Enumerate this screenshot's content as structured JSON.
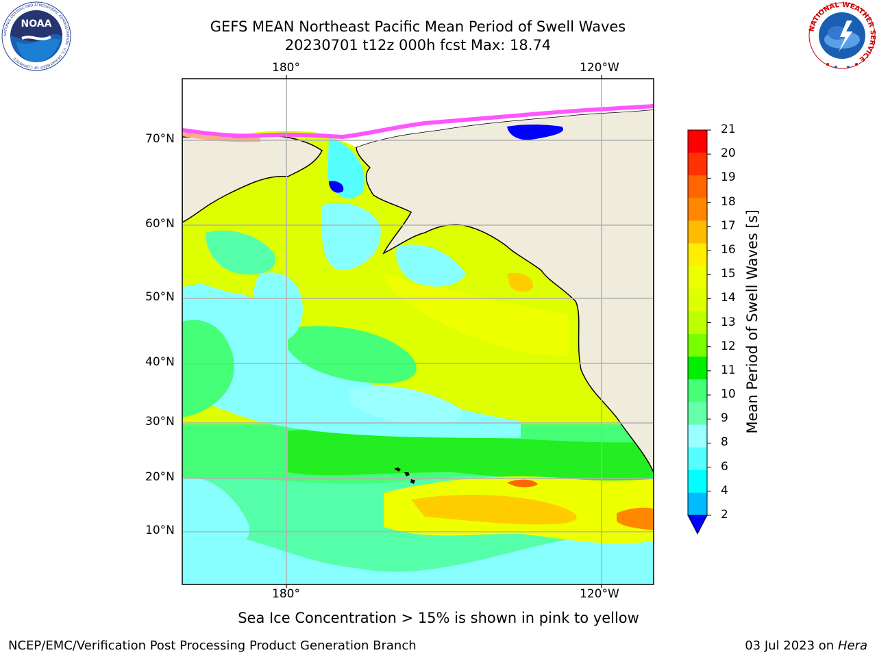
{
  "header": {
    "title_line1": "GEFS MEAN Northeast Pacific Mean Period of Swell Waves",
    "title_line2": "20230701 t12z 000h fcst   Max: 18.74"
  },
  "map": {
    "top_lon_labels": [
      "180°",
      "120°W"
    ],
    "bottom_lon_labels": [
      "180°",
      "120°W"
    ],
    "lat_labels": [
      "70°N",
      "60°N",
      "50°N",
      "40°N",
      "30°N",
      "20°N",
      "10°N"
    ]
  },
  "colorbar": {
    "label": "Mean Period of Swell Waves [s]",
    "ticks": [
      "21",
      "20",
      "19",
      "18",
      "17",
      "16",
      "15",
      "14",
      "13",
      "12",
      "11",
      "10",
      "9",
      "8",
      "6",
      "4",
      "2"
    ],
    "colors": [
      "#ff0000",
      "#ff3300",
      "#ff6600",
      "#ff8800",
      "#ffbb00",
      "#ffee00",
      "#eeff00",
      "#ddff00",
      "#bbff00",
      "#77ff00",
      "#00ee00",
      "#44ff77",
      "#66ffaa",
      "#99ffff",
      "#55ffff",
      "#00ffff",
      "#00bbff",
      "#0077ff"
    ],
    "extend_color": "#0000ff"
  },
  "note": "Sea Ice Concentration > 15% is shown in pink to yellow",
  "footer": {
    "left": "NCEP/EMC/Verification Post Processing Product Generation Branch",
    "date": "03 Jul 2023 on ",
    "machine": "Hera"
  },
  "logos": {
    "noaa_text": "NOAA",
    "noaa_ring_text": "NATIONAL OCEANIC AND ATMOSPHERIC ADMINISTRATION · U.S. DEPARTMENT OF COMMERCE",
    "nws_ring_text": "NATIONAL WEATHER SERVICE"
  },
  "colors": {
    "land": "#efecdc",
    "ocean_main": "#ddff00",
    "grid": "#b0b0b0"
  }
}
